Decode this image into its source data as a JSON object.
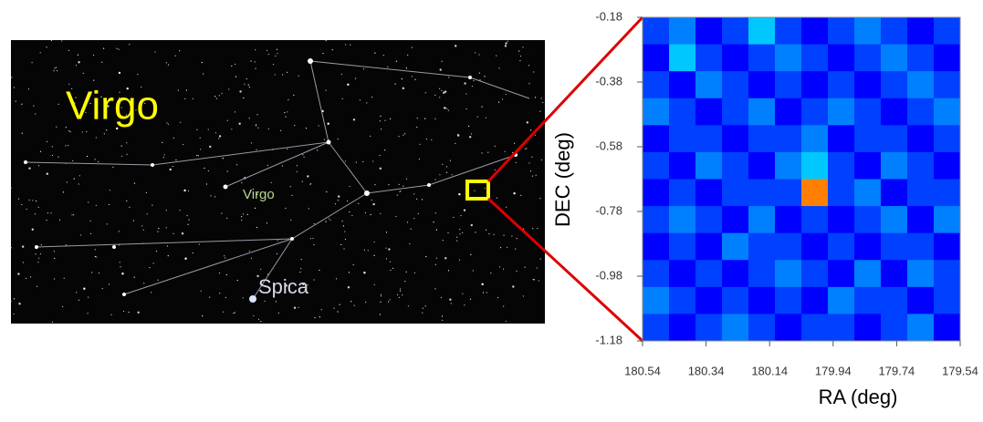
{
  "star_map": {
    "title": "Virgo",
    "constellation_label": "Virgo",
    "star_label": "Spica"
  },
  "chart_data": {
    "type": "heatmap",
    "xlabel": "RA (deg)",
    "ylabel": "DEC (deg)",
    "xlim": [
      180.54,
      179.54
    ],
    "ylim": [
      -1.18,
      -0.18
    ],
    "xticks": [
      180.54,
      180.34,
      180.14,
      179.94,
      179.74,
      179.54
    ],
    "yticks": [
      -0.18,
      -0.38,
      -0.58,
      -0.78,
      -0.98,
      -1.18
    ],
    "z": [
      [
        3,
        4,
        2,
        3,
        5,
        3,
        2,
        3,
        4,
        3,
        2,
        3
      ],
      [
        2,
        5,
        3,
        2,
        3,
        4,
        3,
        2,
        3,
        4,
        3,
        2
      ],
      [
        3,
        2,
        4,
        3,
        2,
        3,
        2,
        3,
        2,
        3,
        4,
        3
      ],
      [
        4,
        3,
        2,
        3,
        4,
        2,
        3,
        4,
        3,
        2,
        3,
        4
      ],
      [
        2,
        3,
        3,
        2,
        3,
        3,
        4,
        2,
        3,
        3,
        2,
        3
      ],
      [
        3,
        2,
        4,
        3,
        2,
        4,
        5,
        3,
        2,
        4,
        3,
        2
      ],
      [
        2,
        3,
        2,
        3,
        3,
        3,
        9,
        3,
        4,
        2,
        3,
        3
      ],
      [
        3,
        4,
        3,
        2,
        4,
        2,
        3,
        2,
        3,
        4,
        2,
        4
      ],
      [
        2,
        3,
        2,
        4,
        3,
        3,
        2,
        3,
        2,
        3,
        3,
        2
      ],
      [
        3,
        2,
        3,
        2,
        3,
        4,
        3,
        2,
        4,
        2,
        4,
        3
      ],
      [
        4,
        3,
        2,
        3,
        2,
        3,
        2,
        4,
        3,
        3,
        2,
        3
      ],
      [
        3,
        2,
        3,
        4,
        3,
        2,
        3,
        3,
        2,
        3,
        4,
        2
      ]
    ]
  }
}
